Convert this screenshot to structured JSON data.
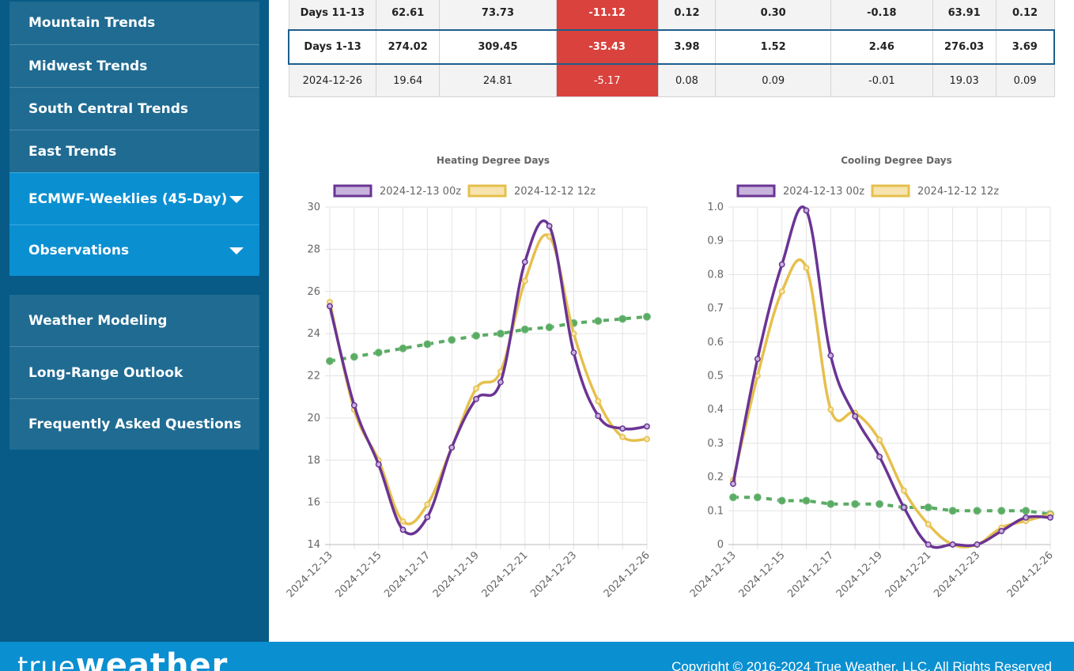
{
  "sidebar": {
    "group1": [
      {
        "label": "Mountain Trends"
      },
      {
        "label": "Midwest Trends"
      },
      {
        "label": "South Central Trends"
      },
      {
        "label": "East Trends"
      },
      {
        "label": "ECMWF-Weeklies (45-Day)"
      },
      {
        "label": "Observations"
      }
    ],
    "group2": [
      {
        "label": "Weather Modeling"
      },
      {
        "label": "Long-Range Outlook"
      },
      {
        "label": "Frequently Asked Questions"
      }
    ]
  },
  "table": {
    "rows": [
      {
        "cells": [
          "Days 11-13",
          "62.61",
          "73.73",
          "-11.12",
          "0.12",
          "0.30",
          "-0.18",
          "63.91",
          "0.12"
        ]
      },
      {
        "cells": [
          "Days 1-13",
          "274.02",
          "309.45",
          "-35.43",
          "3.98",
          "1.52",
          "2.46",
          "276.03",
          "3.69"
        ]
      },
      {
        "cells": [
          "2024-12-26",
          "19.64",
          "24.81",
          "-5.17",
          "0.08",
          "0.09",
          "-0.01",
          "19.03",
          "0.09"
        ]
      }
    ]
  },
  "chart_data": [
    {
      "type": "line",
      "title": "Heating Degree Days",
      "x": [
        "2024-12-13",
        "2024-12-14",
        "2024-12-15",
        "2024-12-16",
        "2024-12-17",
        "2024-12-18",
        "2024-12-19",
        "2024-12-20",
        "2024-12-21",
        "2024-12-22",
        "2024-12-23",
        "2024-12-24",
        "2024-12-25",
        "2024-12-26"
      ],
      "tick_labels": [
        "2024-12-13",
        "2024-12-15",
        "2024-12-17",
        "2024-12-19",
        "2024-12-21",
        "2024-12-23",
        "2024-12-26"
      ],
      "ylim": [
        14,
        30
      ],
      "yticks": [
        14,
        16,
        18,
        20,
        22,
        24,
        26,
        28,
        30
      ],
      "grid": true,
      "legend_position": "top",
      "series": [
        {
          "name": "2024-12-13 00z",
          "color": "#6a3494",
          "fill": "#c7b3dc",
          "values": [
            25.3,
            20.6,
            17.8,
            14.7,
            15.3,
            18.6,
            20.9,
            21.7,
            27.4,
            29.1,
            23.1,
            20.1,
            19.5,
            19.6
          ]
        },
        {
          "name": "2024-12-12 12z",
          "color": "#e6c04d",
          "fill": "#f6e3ae",
          "values": [
            25.5,
            20.4,
            18.0,
            15.1,
            15.9,
            18.6,
            21.4,
            22.2,
            26.5,
            28.6,
            24.0,
            20.8,
            19.1,
            19.0
          ]
        },
        {
          "name": "",
          "color": "#5aab63",
          "dashed": true,
          "values": [
            22.7,
            22.9,
            23.1,
            23.3,
            23.5,
            23.7,
            23.9,
            24.0,
            24.2,
            24.3,
            24.5,
            24.6,
            24.7,
            24.8
          ]
        }
      ]
    },
    {
      "type": "line",
      "title": "Cooling Degree Days",
      "x": [
        "2024-12-13",
        "2024-12-14",
        "2024-12-15",
        "2024-12-16",
        "2024-12-17",
        "2024-12-18",
        "2024-12-19",
        "2024-12-20",
        "2024-12-21",
        "2024-12-22",
        "2024-12-23",
        "2024-12-24",
        "2024-12-25",
        "2024-12-26"
      ],
      "tick_labels": [
        "2024-12-13",
        "2024-12-15",
        "2024-12-17",
        "2024-12-19",
        "2024-12-21",
        "2024-12-23",
        "2024-12-26"
      ],
      "ylim": [
        0,
        1.0
      ],
      "yticks": [
        0,
        0.1,
        0.2,
        0.3,
        0.4,
        0.5,
        0.6,
        0.7,
        0.8,
        0.9,
        1.0
      ],
      "ytick_labels": [
        "0",
        "0.1",
        "0.2",
        "0.3",
        "0.4",
        "0.5",
        "0.6",
        "0.7",
        "0.8",
        "0.9",
        "1.0"
      ],
      "grid": true,
      "legend_position": "top",
      "series": [
        {
          "name": "2024-12-13 00z",
          "color": "#6a3494",
          "fill": "#c7b3dc",
          "values": [
            0.18,
            0.55,
            0.83,
            0.99,
            0.56,
            0.38,
            0.26,
            0.11,
            0.0,
            0.0,
            0.0,
            0.04,
            0.08,
            0.08
          ]
        },
        {
          "name": "2024-12-12 12z",
          "color": "#e6c04d",
          "fill": "#f6e3ae",
          "values": [
            0.19,
            0.5,
            0.75,
            0.82,
            0.4,
            0.39,
            0.31,
            0.16,
            0.06,
            0.0,
            0.0,
            0.05,
            0.07,
            0.09
          ]
        },
        {
          "name": "",
          "color": "#5aab63",
          "dashed": true,
          "values": [
            0.14,
            0.14,
            0.13,
            0.13,
            0.12,
            0.12,
            0.12,
            0.11,
            0.11,
            0.1,
            0.1,
            0.1,
            0.1,
            0.09
          ]
        }
      ]
    }
  ],
  "footer": {
    "logo_light": "true",
    "logo_bold": "weather",
    "copyright": "Copyright © 2016-2024 True Weather, LLC. All Rights Reserved"
  }
}
